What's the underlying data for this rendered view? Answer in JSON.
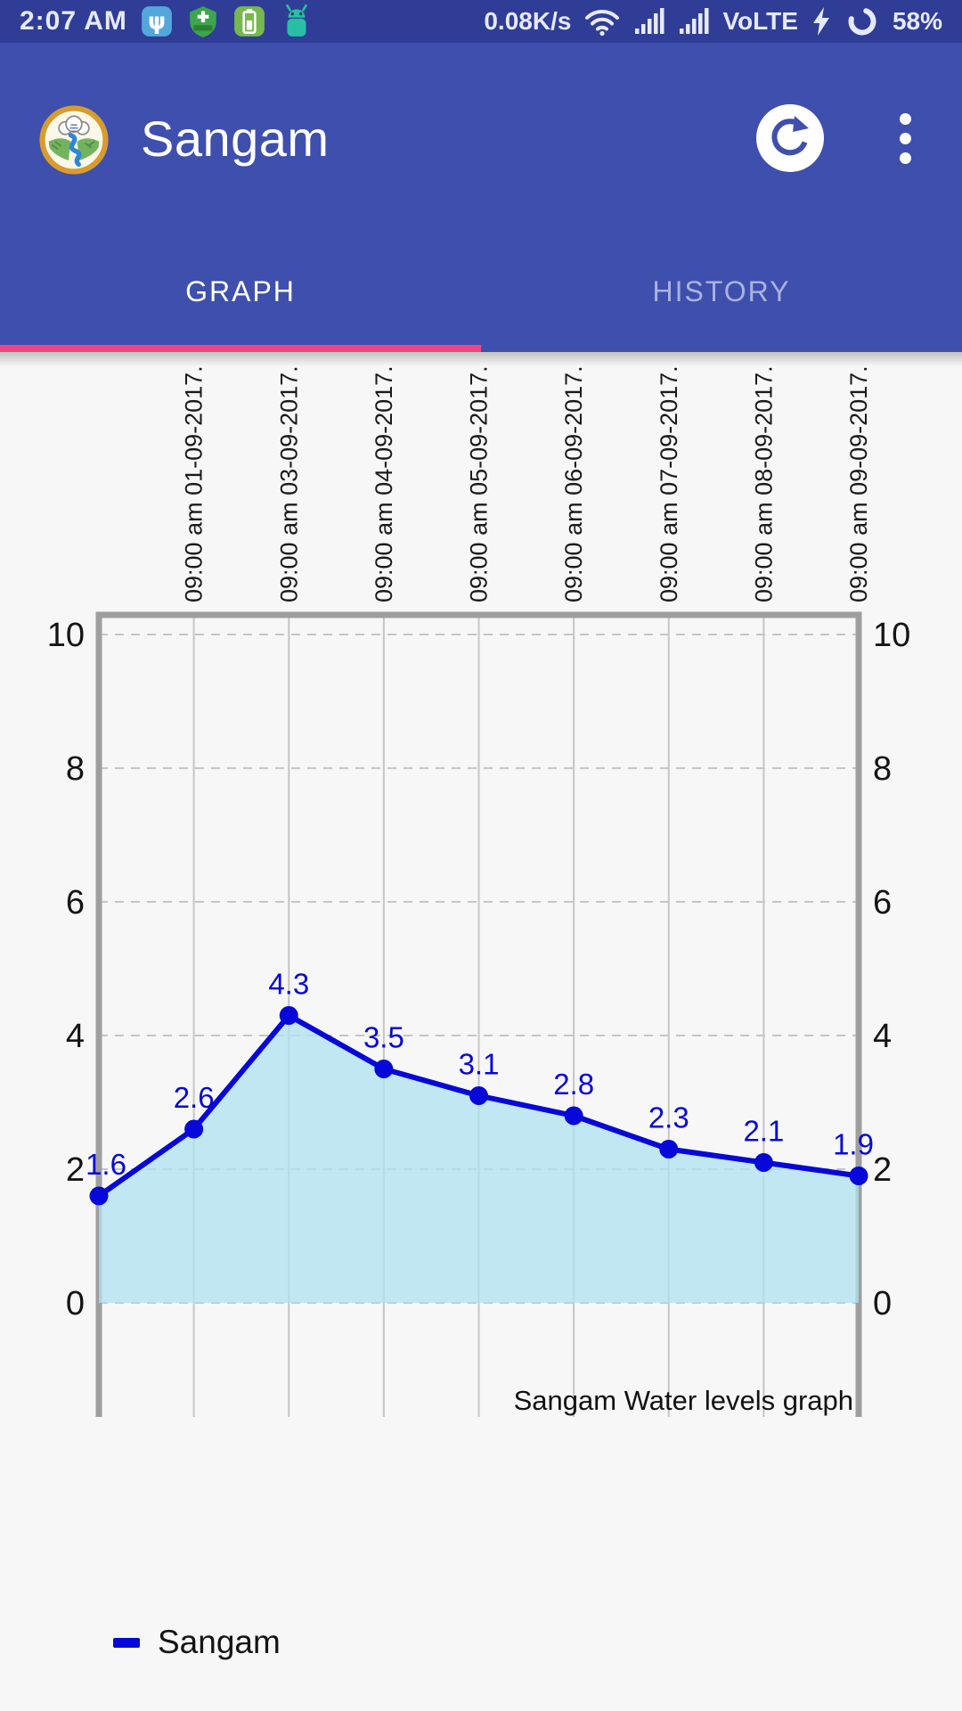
{
  "status_bar": {
    "time": "2:07 AM",
    "net_speed": "0.08K/s",
    "volte_label": "VoLTE",
    "battery_percent": "58%"
  },
  "app_bar": {
    "title": "Sangam"
  },
  "tabs": {
    "graph_label": "GRAPH",
    "history_label": "HISTORY"
  },
  "icons": {
    "status_left": [
      "usb-icon",
      "antivirus-shield-icon",
      "battery-app-icon",
      "android-icon"
    ],
    "status_right": [
      "wifi-icon",
      "signal-bars-icon",
      "signal-bars-icon",
      "flash-charging-icon",
      "battery-ring-icon"
    ],
    "app_bar": [
      "app-logo-icon",
      "refresh-icon",
      "overflow-menu-icon"
    ]
  },
  "colors": {
    "status_bar_bg": "#2F3D97",
    "app_bar_bg": "#3E4FAE",
    "tab_indicator": "#F4437E",
    "page_bg": "#F7F7F7",
    "line": "#0707D9",
    "area_fill": "rgba(173,225,240,0.75)",
    "grid": "#C5C5C5",
    "frame": "#9E9E9E",
    "axis_text": "#141414"
  },
  "chart_data": {
    "type": "line",
    "title": "Sangam Water levels graph",
    "x_labels": [
      "",
      "09:00 am 01-09-2017.",
      "09:00 am 03-09-2017.",
      "09:00 am 04-09-2017.",
      "09:00 am 05-09-2017.",
      "09:00 am 06-09-2017.",
      "09:00 am 07-09-2017.",
      "09:00 am 08-09-2017.",
      "09:00 am 09-09-2017."
    ],
    "series": [
      {
        "name": "Sangam",
        "values": [
          1.6,
          2.6,
          4.3,
          3.5,
          3.1,
          2.8,
          2.3,
          2.1,
          1.9
        ]
      }
    ],
    "point_labels": [
      "1.6",
      "2.6",
      "4.3",
      "3.5",
      "3.1",
      "2.8",
      "2.3",
      "2.1",
      "1.9"
    ],
    "y_ticks": [
      0,
      2,
      4,
      6,
      8,
      10
    ],
    "ylim": [
      0,
      10
    ],
    "grid": true,
    "legend_position": "bottom-left"
  },
  "legend": {
    "label": "Sangam"
  }
}
